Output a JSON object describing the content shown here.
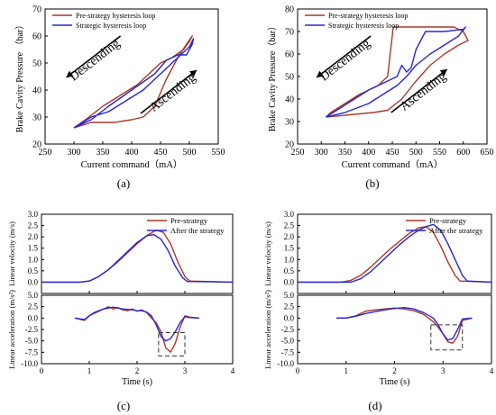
{
  "colors": {
    "pre": "#A8392A",
    "post": "#2626D9",
    "axis": "#000000",
    "dash": "#333333"
  },
  "panel_labels": [
    "(a)",
    "(b)",
    "(c)",
    "(d)"
  ],
  "chart_data": [
    {
      "id": "a",
      "type": "line",
      "xlabel": "Current command（mA）",
      "ylabel": "Brake Cavity Pressure （bar）",
      "xlim": [
        250,
        550
      ],
      "ylim": [
        20,
        70
      ],
      "xticks": [
        250,
        300,
        350,
        400,
        450,
        500,
        550
      ],
      "yticks": [
        20,
        30,
        40,
        50,
        60,
        70
      ],
      "legend_position": "top-left",
      "annotations": [
        {
          "text": "Descending",
          "x": 340,
          "y": 50
        },
        {
          "text": "Ascending",
          "x": 475,
          "y": 38
        }
      ],
      "series": [
        {
          "name": "Pre-strategy hysteresis loop",
          "color_key": "pre",
          "x": [
            300,
            330,
            370,
            400,
            420,
            440,
            460,
            480,
            495,
            505,
            500,
            490,
            470,
            450,
            430,
            410,
            380,
            350,
            320,
            300
          ],
          "y": [
            26,
            28,
            28,
            29,
            30,
            34,
            44,
            52,
            57,
            60,
            58,
            55,
            52,
            50,
            46,
            42,
            38,
            34,
            29,
            26
          ]
        },
        {
          "name": "Strategic hysteresis loop",
          "color_key": "post",
          "x": [
            300,
            330,
            360,
            390,
            420,
            440,
            460,
            480,
            500,
            507,
            505,
            495,
            480,
            460,
            440,
            420,
            400,
            380,
            360,
            330,
            300
          ],
          "y": [
            26,
            30,
            32,
            36,
            40,
            44,
            48,
            52,
            56,
            59,
            57,
            53,
            53,
            51,
            46,
            43,
            40,
            37,
            34,
            29,
            26
          ]
        }
      ]
    },
    {
      "id": "b",
      "type": "line",
      "xlabel": "Current command（mA）",
      "ylabel": "Brake Cavity Pressure（bar）",
      "xlim": [
        250,
        650
      ],
      "ylim": [
        20,
        80
      ],
      "xticks": [
        250,
        300,
        350,
        400,
        450,
        500,
        550,
        600,
        650
      ],
      "yticks": [
        20,
        30,
        40,
        50,
        60,
        70,
        80
      ],
      "legend_position": "top-left",
      "annotations": [
        {
          "text": "Descending",
          "x": 355,
          "y": 56
        },
        {
          "text": "Ascending",
          "x": 520,
          "y": 42
        }
      ],
      "series": [
        {
          "name": "Pre-strategy hysteresis loop",
          "color_key": "pre",
          "x": [
            310,
            360,
            410,
            440,
            470,
            500,
            530,
            560,
            590,
            610,
            600,
            580,
            560,
            520,
            490,
            470,
            460,
            452,
            440,
            430,
            420,
            400,
            380,
            350,
            320,
            310
          ],
          "y": [
            32,
            33,
            34,
            35,
            40,
            48,
            55,
            60,
            64,
            66,
            70,
            72,
            72,
            72,
            72,
            72,
            72,
            72,
            50,
            48,
            46,
            44,
            42,
            38,
            34,
            32
          ]
        },
        {
          "name": "Strategic hysteresis loop",
          "color_key": "post",
          "x": [
            310,
            350,
            400,
            430,
            460,
            480,
            500,
            530,
            560,
            590,
            605,
            600,
            560,
            520,
            500,
            490,
            480,
            470,
            460,
            440,
            420,
            400,
            370,
            340,
            310
          ],
          "y": [
            32,
            34,
            38,
            42,
            46,
            50,
            55,
            60,
            64,
            68,
            72,
            71,
            70,
            70,
            62,
            54,
            52,
            55,
            50,
            48,
            46,
            44,
            40,
            36,
            32
          ]
        }
      ]
    },
    {
      "id": "c",
      "type": "line",
      "xlabel": "Time (s)",
      "xlim": [
        0,
        4
      ],
      "xticks": [
        0,
        1,
        2,
        3,
        4
      ],
      "legend_position": "top-right",
      "legend": [
        "Pre-strategy",
        "After the strategy"
      ],
      "top": {
        "ylabel": "Linear velocity (m/s)",
        "ylim": [
          -0.5,
          3.0
        ],
        "yticks": [
          0.0,
          0.5,
          1.0,
          1.5,
          2.0,
          2.5,
          3.0
        ],
        "series": [
          {
            "name": "Pre-strategy",
            "color_key": "pre",
            "x": [
              0,
              0.8,
              1.0,
              1.2,
              1.4,
              1.6,
              1.8,
              2.0,
              2.2,
              2.4,
              2.55,
              2.7,
              2.85,
              3.0,
              3.1,
              4
            ],
            "y": [
              0,
              0,
              0.05,
              0.25,
              0.55,
              0.9,
              1.3,
              1.7,
              2.05,
              2.3,
              2.2,
              1.7,
              0.9,
              0.25,
              0.05,
              0
            ]
          },
          {
            "name": "After the strategy",
            "color_key": "post",
            "x": [
              0,
              0.8,
              1.0,
              1.2,
              1.4,
              1.6,
              1.8,
              2.0,
              2.2,
              2.35,
              2.5,
              2.65,
              2.8,
              2.95,
              3.05,
              4
            ],
            "y": [
              0,
              0,
              0.05,
              0.25,
              0.55,
              0.95,
              1.35,
              1.75,
              2.05,
              2.1,
              1.9,
              1.4,
              0.7,
              0.2,
              0.03,
              0
            ]
          }
        ]
      },
      "bottom": {
        "ylabel": "Linear acceleration (m/s²)",
        "ylim": [
          -10.0,
          5.0
        ],
        "yticks": [
          -10.0,
          -7.5,
          -5.0,
          -2.5,
          0.0,
          2.5,
          5.0
        ],
        "series": [
          {
            "name": "Pre-strategy",
            "color_key": "pre",
            "x": [
              0.7,
              0.9,
              1.0,
              1.1,
              1.2,
              1.3,
              1.4,
              1.5,
              1.6,
              1.7,
              1.8,
              1.9,
              2.0,
              2.1,
              2.2,
              2.3,
              2.4,
              2.5,
              2.6,
              2.7,
              2.8,
              2.9,
              3.0,
              3.1,
              3.3
            ],
            "y": [
              0,
              -0.5,
              0.5,
              1.0,
              1.5,
              2.0,
              2.5,
              2.0,
              2.3,
              1.8,
              1.6,
              2.0,
              1.5,
              1.8,
              1.2,
              0,
              -1.0,
              -3.0,
              -6.5,
              -7.5,
              -5.5,
              -2.0,
              0.5,
              0.2,
              0
            ]
          },
          {
            "name": "After the strategy",
            "color_key": "post",
            "x": [
              0.7,
              0.9,
              1.0,
              1.1,
              1.2,
              1.3,
              1.4,
              1.5,
              1.6,
              1.7,
              1.8,
              1.9,
              2.0,
              2.1,
              2.2,
              2.3,
              2.4,
              2.5,
              2.6,
              2.7,
              2.8,
              2.9,
              3.0,
              3.1,
              3.3
            ],
            "y": [
              0,
              -0.3,
              0.5,
              1.2,
              1.6,
              2.0,
              2.2,
              2.4,
              2.2,
              2.0,
              1.9,
              1.8,
              1.6,
              1.6,
              1.3,
              0.5,
              -1.5,
              -4.0,
              -5.0,
              -4.5,
              -3.0,
              -1.0,
              0.3,
              0.1,
              0
            ]
          }
        ],
        "highlight_box": {
          "x": [
            2.45,
            3.0
          ],
          "y": [
            -8.3,
            -3.2
          ]
        }
      }
    },
    {
      "id": "d",
      "type": "line",
      "xlabel": "Time (s)",
      "xlim": [
        0,
        4
      ],
      "xticks": [
        0,
        1,
        2,
        3,
        4
      ],
      "legend_position": "top-right",
      "legend": [
        "Pre-strategy",
        "After the strategy"
      ],
      "top": {
        "ylabel": "Linear velocity (m/s)",
        "ylim": [
          -0.5,
          3.0
        ],
        "yticks": [
          0.0,
          0.5,
          1.0,
          1.5,
          2.0,
          2.5,
          3.0
        ],
        "series": [
          {
            "name": "Pre-strategy",
            "color_key": "pre",
            "x": [
              0,
              0.9,
              1.1,
              1.3,
              1.5,
              1.7,
              1.9,
              2.1,
              2.3,
              2.5,
              2.65,
              2.8,
              2.95,
              3.1,
              3.25,
              3.35,
              4
            ],
            "y": [
              0,
              0,
              0.08,
              0.3,
              0.65,
              1.05,
              1.45,
              1.8,
              2.15,
              2.4,
              2.45,
              2.2,
              1.6,
              0.9,
              0.3,
              0.05,
              0
            ]
          },
          {
            "name": "After the strategy",
            "color_key": "post",
            "x": [
              0,
              1.1,
              1.3,
              1.5,
              1.7,
              1.9,
              2.1,
              2.3,
              2.5,
              2.65,
              2.8,
              2.95,
              3.1,
              3.25,
              3.4,
              3.5,
              4
            ],
            "y": [
              0,
              0,
              0.15,
              0.45,
              0.85,
              1.25,
              1.65,
              2.0,
              2.3,
              2.45,
              2.55,
              2.3,
              1.7,
              1.0,
              0.3,
              0.05,
              0
            ]
          }
        ]
      },
      "bottom": {
        "ylabel": "Linear acceleration (m/s²)",
        "ylim": [
          -10.0,
          5.0
        ],
        "yticks": [
          -10.0,
          -7.5,
          -5.0,
          -2.5,
          0.0,
          2.5,
          5.0
        ],
        "series": [
          {
            "name": "Pre-strategy",
            "color_key": "pre",
            "x": [
              0.8,
              1.0,
              1.2,
              1.4,
              1.6,
              1.8,
              2.0,
              2.2,
              2.4,
              2.6,
              2.8,
              2.9,
              3.0,
              3.1,
              3.2,
              3.3,
              3.4,
              3.6
            ],
            "y": [
              0,
              0,
              0.5,
              1.5,
              1.8,
              2.0,
              2.2,
              2.0,
              1.6,
              0.8,
              -0.8,
              -2.0,
              -3.5,
              -5.2,
              -5.5,
              -4.0,
              -0.5,
              0
            ]
          },
          {
            "name": "After the strategy",
            "color_key": "post",
            "x": [
              0.8,
              1.0,
              1.2,
              1.4,
              1.6,
              1.8,
              2.0,
              2.2,
              2.4,
              2.6,
              2.8,
              2.9,
              3.0,
              3.1,
              3.2,
              3.3,
              3.4,
              3.6
            ],
            "y": [
              0,
              0,
              0.4,
              1.0,
              1.4,
              1.8,
              2.1,
              2.3,
              2.0,
              1.2,
              0,
              -1.5,
              -3.5,
              -4.8,
              -4.5,
              -2.5,
              -0.2,
              0
            ]
          }
        ],
        "highlight_box": {
          "x": [
            2.75,
            3.4
          ],
          "y": [
            -7.0,
            -1.5
          ]
        }
      }
    }
  ]
}
